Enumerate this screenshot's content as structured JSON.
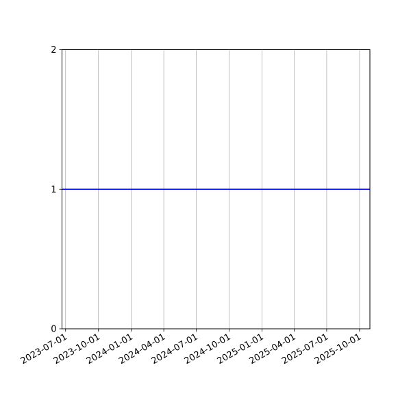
{
  "chart_data": {
    "type": "line",
    "title": "",
    "xlabel": "",
    "ylabel": "",
    "x_type": "date",
    "xlim": [
      "2023-06-21",
      "2025-10-30"
    ],
    "ylim": [
      0,
      2
    ],
    "x_ticks": [
      "2023-07-01",
      "2023-10-01",
      "2024-01-01",
      "2024-04-01",
      "2024-07-01",
      "2024-10-01",
      "2025-01-01",
      "2025-04-01",
      "2025-07-01",
      "2025-10-01"
    ],
    "y_ticks": [
      0,
      1,
      2
    ],
    "grid": {
      "x": true,
      "y": false,
      "color": "#b0b0b0"
    },
    "series": [
      {
        "x": [
          "2023-06-21",
          "2025-10-30"
        ],
        "y": [
          1,
          1
        ],
        "color": "#0000ff"
      }
    ]
  }
}
